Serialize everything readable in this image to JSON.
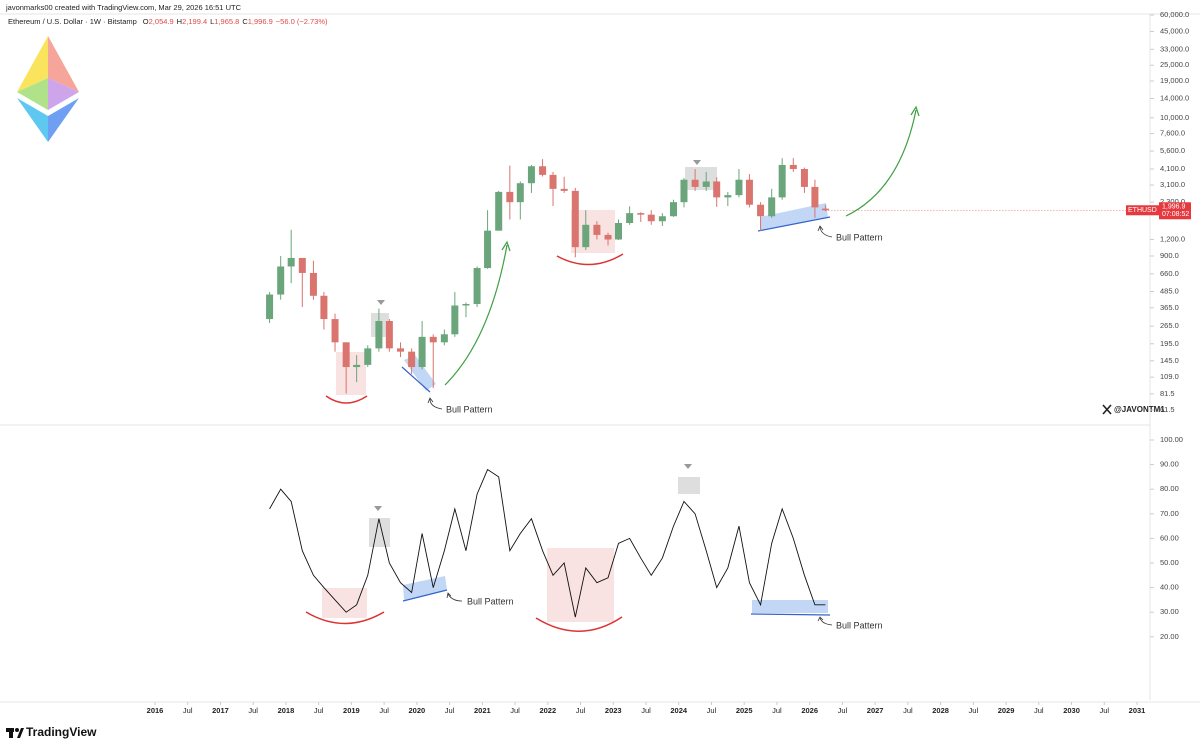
{
  "header": {
    "credit": "javonmarks00 created with TradingView.com, Mar 29, 2026 16:51 UTC",
    "symbol_info": "Ethereum / U.S. Dollar · 1W · Bitstamp",
    "ohlc": [
      {
        "prefix": "O",
        "text": "2,054.9"
      },
      {
        "prefix": "H",
        "text": "2,199.4"
      },
      {
        "prefix": "L",
        "text": "1,965.8"
      },
      {
        "prefix": "C",
        "text": "1,996.9"
      }
    ],
    "change": "−56.0 (−2.73%)"
  },
  "price_tag": {
    "symbol": "ETHUSD",
    "price": "1,996.9",
    "countdown": "07:08:52"
  },
  "annotations": [
    "Bull Pattern",
    "Bull Pattern",
    "Bull Pattern",
    "Bull Pattern"
  ],
  "watermark": "@JAVONTM1",
  "brand": "TradingView",
  "chart_data": [
    {
      "type": "candlestick",
      "log_scale": true,
      "x": [
        2017.75,
        2017.92,
        2018.08,
        2018.25,
        2018.42,
        2018.58,
        2018.75,
        2018.92,
        2019.08,
        2019.25,
        2019.42,
        2019.58,
        2019.75,
        2019.92,
        2020.08,
        2020.25,
        2020.42,
        2020.58,
        2020.75,
        2020.92,
        2021.08,
        2021.25,
        2021.42,
        2021.58,
        2021.75,
        2021.92,
        2022.08,
        2022.25,
        2022.42,
        2022.58,
        2022.75,
        2022.92,
        2023.08,
        2023.25,
        2023.42,
        2023.58,
        2023.75,
        2023.92,
        2024.08,
        2024.25,
        2024.42,
        2024.58,
        2024.75,
        2024.92,
        2025.08,
        2025.25,
        2025.42,
        2025.58,
        2025.75,
        2025.92,
        2026.08,
        2026.24
      ],
      "open": [
        300,
        460,
        750,
        870,
        670,
        450,
        300,
        200,
        130,
        135,
        180,
        290,
        180,
        170,
        130,
        220,
        200,
        230,
        380,
        390,
        730,
        1400,
        2750,
        2300,
        3200,
        4300,
        3700,
        2900,
        2800,
        1050,
        1550,
        1300,
        1200,
        1600,
        1900,
        1850,
        1650,
        1800,
        2300,
        3400,
        3000,
        3300,
        2500,
        2600,
        3400,
        2200,
        1800,
        2500,
        4400,
        4100,
        3000,
        2054.9
      ],
      "high": [
        480,
        900,
        1420,
        870,
        830,
        480,
        330,
        200,
        160,
        190,
        360,
        300,
        200,
        180,
        290,
        230,
        250,
        480,
        400,
        750,
        2000,
        2800,
        4350,
        3300,
        4400,
        4870,
        3900,
        3580,
        2950,
        2000,
        1650,
        1350,
        1700,
        2140,
        1930,
        2000,
        1900,
        2400,
        3500,
        4090,
        3900,
        3550,
        2750,
        4100,
        3750,
        2300,
        2900,
        4950,
        4950,
        4200,
        3400,
        2199.4
      ],
      "low": [
        280,
        420,
        560,
        370,
        420,
        250,
        170,
        82,
        100,
        130,
        170,
        170,
        155,
        115,
        125,
        90,
        190,
        220,
        310,
        370,
        720,
        1400,
        1700,
        1700,
        2700,
        3600,
        2150,
        2700,
        880,
        1000,
        1200,
        1080,
        1190,
        1550,
        1630,
        1550,
        1520,
        1780,
        2100,
        2800,
        2800,
        2120,
        2150,
        2500,
        2100,
        1390,
        1750,
        2400,
        3900,
        2700,
        1750,
        1965.8
      ],
      "close": [
        460,
        750,
        870,
        670,
        450,
        300,
        200,
        130,
        135,
        180,
        290,
        180,
        170,
        130,
        220,
        200,
        230,
        380,
        390,
        730,
        1400,
        2750,
        2300,
        3200,
        4300,
        3700,
        2900,
        2800,
        1050,
        1550,
        1300,
        1200,
        1600,
        1900,
        1850,
        1650,
        1800,
        2300,
        3400,
        3000,
        3300,
        2500,
        2600,
        3400,
        2200,
        1800,
        2500,
        4400,
        4100,
        3000,
        2100,
        1996.9
      ],
      "up_color": "#6aa57b",
      "down_color": "#d9746f",
      "xlim": [
        2016,
        2031
      ],
      "ylim": [
        61.5,
        60000
      ],
      "yticks": [
        {
          "value": 60000,
          "label": "60,000.0"
        },
        {
          "value": 45000,
          "label": "45,000.0"
        },
        {
          "value": 33000,
          "label": "33,000.0"
        },
        {
          "value": 25000,
          "label": "25,000.0"
        },
        {
          "value": 19000,
          "label": "19,000.0"
        },
        {
          "value": 14000,
          "label": "14,000.0"
        },
        {
          "value": 10000,
          "label": "10,000.0"
        },
        {
          "value": 7600,
          "label": "7,600.0"
        },
        {
          "value": 5600,
          "label": "5,600.0"
        },
        {
          "value": 4100,
          "label": "4,100.0"
        },
        {
          "value": 3100,
          "label": "3,100.0"
        },
        {
          "value": 2300,
          "label": "2,300.0"
        },
        {
          "value": 1200,
          "label": "1,200.0"
        },
        {
          "value": 900,
          "label": "900.0"
        },
        {
          "value": 660,
          "label": "660.0"
        },
        {
          "value": 485,
          "label": "485.0"
        },
        {
          "value": 365,
          "label": "365.0"
        },
        {
          "value": 265,
          "label": "265.0"
        },
        {
          "value": 195,
          "label": "195.0"
        },
        {
          "value": 145,
          "label": "145.0"
        },
        {
          "value": 109,
          "label": "109.0"
        },
        {
          "value": 81.5,
          "label": "81.5"
        },
        {
          "value": 61.5,
          "label": "61.5"
        }
      ]
    },
    {
      "type": "line",
      "x": [
        2017.75,
        2017.92,
        2018.08,
        2018.25,
        2018.42,
        2018.58,
        2018.75,
        2018.92,
        2019.08,
        2019.25,
        2019.42,
        2019.58,
        2019.75,
        2019.92,
        2020.08,
        2020.25,
        2020.42,
        2020.58,
        2020.75,
        2020.92,
        2021.08,
        2021.25,
        2021.42,
        2021.58,
        2021.75,
        2021.92,
        2022.08,
        2022.25,
        2022.42,
        2022.58,
        2022.75,
        2022.92,
        2023.08,
        2023.25,
        2023.42,
        2023.58,
        2023.75,
        2023.92,
        2024.08,
        2024.25,
        2024.42,
        2024.58,
        2024.75,
        2024.92,
        2025.08,
        2025.25,
        2025.42,
        2025.58,
        2025.75,
        2025.92,
        2026.08,
        2026.24
      ],
      "values": [
        72,
        80,
        75,
        55,
        45,
        40,
        35,
        30,
        33,
        45,
        68,
        50,
        42,
        38,
        62,
        40,
        55,
        72,
        55,
        78,
        88,
        85,
        55,
        62,
        68,
        55,
        45,
        50,
        28,
        48,
        42,
        44,
        58,
        60,
        52,
        45,
        52,
        65,
        75,
        70,
        55,
        40,
        48,
        65,
        42,
        33,
        58,
        72,
        60,
        45,
        33,
        33
      ],
      "color": "#111111",
      "xlim": [
        2016,
        2031
      ],
      "ylim": [
        0,
        100
      ],
      "yticks": [
        {
          "value": 100,
          "label": "100.00"
        },
        {
          "value": 90,
          "label": "90.00"
        },
        {
          "value": 80,
          "label": "80.00"
        },
        {
          "value": 70,
          "label": "70.00"
        },
        {
          "value": 60,
          "label": "60.00"
        },
        {
          "value": 50,
          "label": "50.00"
        },
        {
          "value": 40,
          "label": "40.00"
        },
        {
          "value": 30,
          "label": "30.00"
        },
        {
          "value": 20,
          "label": "20.00"
        }
      ],
      "xticks": [
        2016,
        {
          "value": 2016.5,
          "label": "Jul"
        },
        2017,
        {
          "value": 2017.5,
          "label": "Jul"
        },
        2018,
        {
          "value": 2018.5,
          "label": "Jul"
        },
        2019,
        {
          "value": 2019.5,
          "label": "Jul"
        },
        2020,
        {
          "value": 2020.5,
          "label": "Jul"
        },
        2021,
        {
          "value": 2021.5,
          "label": "Jul"
        },
        2022,
        {
          "value": 2022.5,
          "label": "Jul"
        },
        2023,
        {
          "value": 2023.5,
          "label": "Jul"
        },
        2024,
        {
          "value": 2024.5,
          "label": "Jul"
        },
        2025,
        {
          "value": 2025.5,
          "label": "Jul"
        },
        2026,
        {
          "value": 2026.5,
          "label": "Jul"
        },
        2027,
        {
          "value": 2027.5,
          "label": "Jul"
        },
        2028,
        {
          "value": 2028.5,
          "label": "Jul"
        },
        2029,
        {
          "value": 2029.5,
          "label": "Jul"
        },
        2030,
        {
          "value": 2030.5,
          "label": "Jul"
        },
        2031
      ]
    }
  ]
}
